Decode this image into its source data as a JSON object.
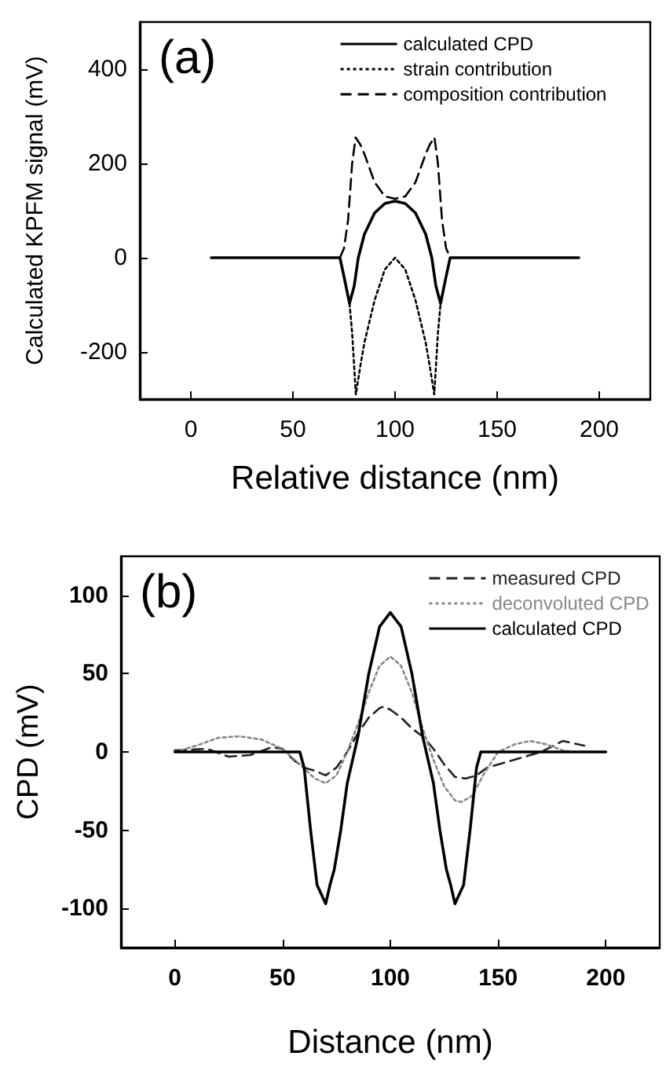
{
  "chart_data": [
    {
      "type": "line",
      "xlabel": "Relative distance (nm)",
      "ylabel": "Calculated KPFM signal (mV)",
      "annotations": [
        "(a)"
      ],
      "xlim": [
        -25,
        225
      ],
      "xticks": [
        0,
        50,
        100,
        150,
        200
      ],
      "ylim": [
        -300,
        500
      ],
      "yticks": [
        -200,
        0,
        200,
        400
      ],
      "grid": false,
      "legend": "top right",
      "series": [
        {
          "name": "calculated CPD",
          "color": "#000000",
          "line_style": "solid",
          "x": [
            10,
            73,
            75,
            77.7,
            80,
            82,
            85,
            90,
            95,
            100,
            105,
            110,
            115,
            118,
            120,
            122.3,
            125,
            127,
            190
          ],
          "values": [
            0,
            0,
            -40,
            -97,
            -60,
            0,
            50,
            95,
            115,
            120,
            115,
            95,
            50,
            0,
            -60,
            -97,
            -40,
            0,
            0
          ]
        },
        {
          "name": "strain contribution",
          "color": "#000000",
          "line_style": "dotted",
          "x": [
            77.7,
            79,
            80.8,
            83,
            85,
            90,
            95,
            100,
            105,
            110,
            115,
            117,
            119.2,
            121,
            122.3
          ],
          "values": [
            -97,
            -160,
            -290,
            -230,
            -180,
            -90,
            -25,
            0,
            -25,
            -90,
            -180,
            -230,
            -290,
            -160,
            -97
          ]
        },
        {
          "name": "composition contribution",
          "color": "#000000",
          "line_style": "dashed",
          "x": [
            73,
            75,
            77,
            79,
            80.7,
            83,
            85,
            90,
            95,
            100,
            105,
            110,
            115,
            117,
            119.3,
            121,
            123,
            125,
            127
          ],
          "values": [
            0,
            20,
            80,
            200,
            255,
            240,
            220,
            160,
            130,
            125,
            130,
            160,
            220,
            240,
            255,
            200,
            80,
            20,
            0
          ]
        }
      ]
    },
    {
      "type": "line",
      "xlabel": "Distance (nm)",
      "ylabel": "CPD (mV)",
      "annotations": [
        "(b)"
      ],
      "xlim": [
        -25,
        225
      ],
      "xticks": [
        0,
        50,
        100,
        150,
        200
      ],
      "ylim": [
        -125,
        125
      ],
      "yticks": [
        -100,
        -50,
        0,
        50,
        100
      ],
      "grid": false,
      "legend": "top right",
      "series": [
        {
          "name": "measured CPD",
          "color": "#222222",
          "line_style": "dashed",
          "x": [
            0,
            15,
            25,
            35,
            45,
            50,
            55,
            60,
            65,
            70,
            75,
            80,
            85,
            90,
            95,
            97,
            100,
            105,
            110,
            115,
            120,
            125,
            130,
            135,
            140,
            145,
            150,
            160,
            170,
            180,
            190
          ],
          "values": [
            1,
            2,
            -3,
            -2,
            3,
            2,
            -5,
            -10,
            -12,
            -15,
            -10,
            0,
            12,
            22,
            28,
            29,
            27,
            22,
            15,
            10,
            2,
            -8,
            -16,
            -17,
            -15,
            -10,
            -8,
            -4,
            0,
            7,
            4
          ]
        },
        {
          "name": "deconvoluted CPD",
          "color": "#888888",
          "line_style": "dotted",
          "x": [
            0,
            10,
            20,
            30,
            40,
            50,
            58,
            65,
            70,
            75,
            80,
            85,
            90,
            95,
            100,
            105,
            110,
            115,
            120,
            125,
            130,
            133,
            138,
            143,
            150,
            158,
            165,
            172,
            180,
            185
          ],
          "values": [
            0,
            4,
            9,
            10,
            8,
            2,
            -8,
            -17,
            -20,
            -15,
            0,
            18,
            38,
            55,
            61,
            55,
            38,
            15,
            -5,
            -22,
            -31,
            -32,
            -28,
            -15,
            0,
            5,
            7,
            5,
            1,
            0
          ]
        },
        {
          "name": "calculated CPD",
          "color": "#000000",
          "line_style": "solid",
          "x": [
            0,
            58,
            60,
            63,
            66,
            70,
            72,
            74,
            77,
            80,
            85,
            90,
            95,
            100,
            105,
            110,
            115,
            120,
            123,
            126,
            128,
            130,
            134,
            137,
            140,
            142,
            200
          ],
          "values": [
            0,
            0,
            -10,
            -50,
            -85,
            -97,
            -85,
            -75,
            -50,
            -20,
            10,
            50,
            80,
            89,
            80,
            50,
            10,
            -20,
            -50,
            -75,
            -85,
            -97,
            -85,
            -50,
            -10,
            0,
            0
          ]
        }
      ]
    }
  ]
}
